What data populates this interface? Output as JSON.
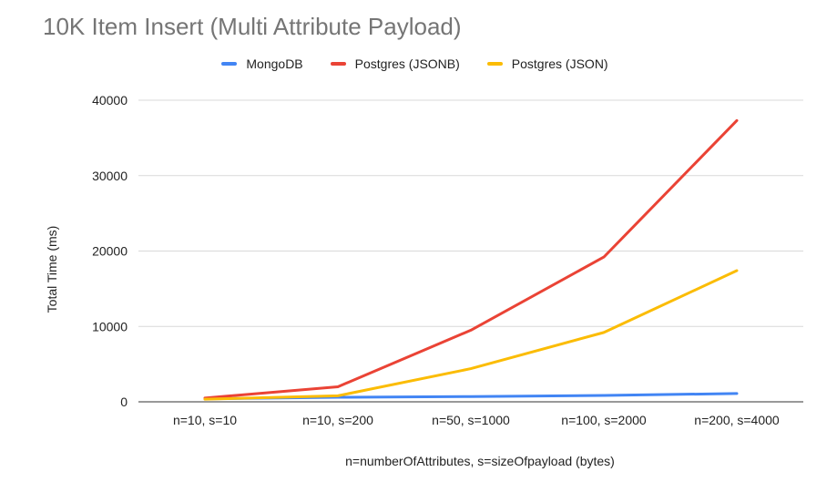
{
  "chart_data": {
    "type": "line",
    "title": "10K Item Insert (Multi Attribute Payload)",
    "xlabel": "n=numberOfAttributes, s=sizeOfpayload (bytes)",
    "ylabel": "Total Time (ms)",
    "categories": [
      "n=10, s=10",
      "n=10, s=200",
      "n=50, s=1000",
      "n=100, s=2000",
      "n=200, s=4000"
    ],
    "ylim": [
      0,
      40000
    ],
    "yticks": [
      0,
      10000,
      20000,
      30000,
      40000
    ],
    "grid": true,
    "legend_position": "top",
    "series": [
      {
        "name": "MongoDB",
        "color": "#4285F4",
        "values": [
          400,
          600,
          700,
          850,
          1100
        ]
      },
      {
        "name": "Postgres (JSONB)",
        "color": "#EA4335",
        "values": [
          500,
          2000,
          9500,
          19200,
          37300
        ]
      },
      {
        "name": "Postgres (JSON)",
        "color": "#FBBC04",
        "values": [
          350,
          800,
          4400,
          9200,
          17400
        ]
      }
    ]
  }
}
